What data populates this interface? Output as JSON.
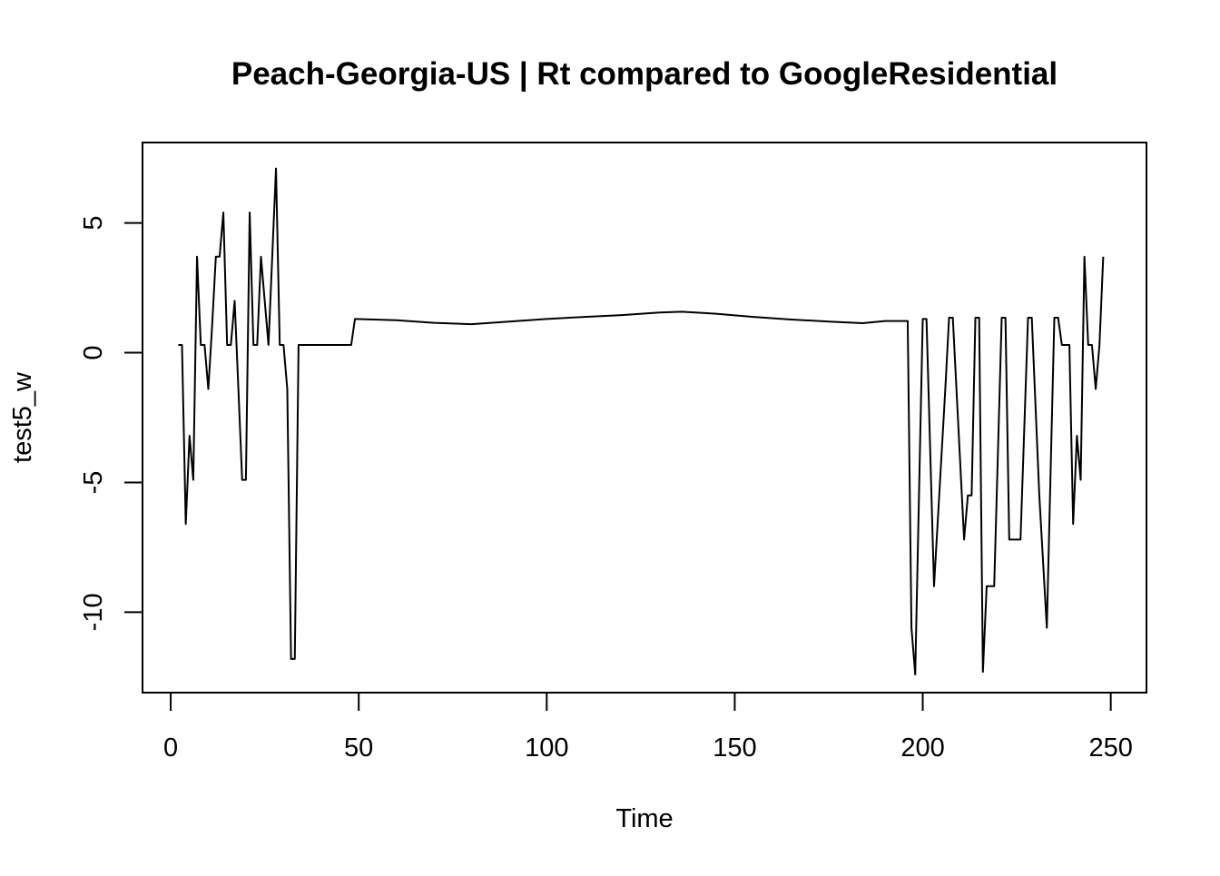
{
  "chart_data": {
    "type": "line",
    "title": "Peach-Georgia-US | Rt compared to GoogleResidential",
    "xlabel": "Time",
    "ylabel": "test5_w",
    "xlim": [
      -7.5,
      259.5
    ],
    "ylim": [
      -13.1,
      8.1
    ],
    "x_ticks": [
      0,
      50,
      100,
      150,
      200,
      250
    ],
    "y_ticks": [
      -10,
      -5,
      0,
      5
    ],
    "grid": false,
    "legend": "none",
    "line_color": "#000000",
    "series": [
      {
        "points": [
          [
            2,
            0.3
          ],
          [
            3,
            0.3
          ],
          [
            4,
            -6.6
          ],
          [
            5,
            -3.2
          ],
          [
            6,
            -4.9
          ],
          [
            7,
            3.7
          ],
          [
            8,
            0.3
          ],
          [
            9,
            0.3
          ],
          [
            10,
            -1.4
          ],
          [
            11,
            1.0
          ],
          [
            12,
            3.7
          ],
          [
            13,
            3.7
          ],
          [
            14,
            5.4
          ],
          [
            15,
            0.3
          ],
          [
            16,
            0.3
          ],
          [
            17,
            2.0
          ],
          [
            18,
            -1.4
          ],
          [
            19,
            -4.9
          ],
          [
            20,
            -4.9
          ],
          [
            21,
            5.4
          ],
          [
            22,
            0.3
          ],
          [
            23,
            0.3
          ],
          [
            24,
            3.7
          ],
          [
            25,
            2.0
          ],
          [
            26,
            0.3
          ],
          [
            27,
            3.7
          ],
          [
            28,
            7.1
          ],
          [
            29,
            0.3
          ],
          [
            30,
            0.3
          ],
          [
            31,
            -1.4
          ],
          [
            32,
            -11.8
          ],
          [
            33,
            -11.8
          ],
          [
            34,
            0.3
          ],
          [
            48,
            0.3
          ],
          [
            49,
            1.3
          ],
          [
            60,
            1.25
          ],
          [
            70,
            1.15
          ],
          [
            80,
            1.1
          ],
          [
            90,
            1.2
          ],
          [
            100,
            1.3
          ],
          [
            110,
            1.38
          ],
          [
            120,
            1.45
          ],
          [
            130,
            1.55
          ],
          [
            136,
            1.58
          ],
          [
            145,
            1.5
          ],
          [
            155,
            1.38
          ],
          [
            165,
            1.28
          ],
          [
            175,
            1.2
          ],
          [
            184,
            1.14
          ],
          [
            190,
            1.22
          ],
          [
            196,
            1.22
          ],
          [
            197,
            -10.6
          ],
          [
            198,
            -12.4
          ],
          [
            199,
            -5.5
          ],
          [
            200,
            1.3
          ],
          [
            201,
            1.3
          ],
          [
            203,
            -9.0
          ],
          [
            206,
            -1.4
          ],
          [
            207,
            1.35
          ],
          [
            208,
            1.35
          ],
          [
            211,
            -7.2
          ],
          [
            212,
            -5.5
          ],
          [
            213,
            -5.5
          ],
          [
            214,
            1.35
          ],
          [
            215,
            1.35
          ],
          [
            216,
            -12.3
          ],
          [
            217,
            -9.0
          ],
          [
            219,
            -9.0
          ],
          [
            221,
            1.35
          ],
          [
            222,
            1.35
          ],
          [
            223,
            -7.2
          ],
          [
            226,
            -7.2
          ],
          [
            228,
            1.35
          ],
          [
            229,
            1.35
          ],
          [
            231,
            -5.5
          ],
          [
            233,
            -10.6
          ],
          [
            235,
            1.35
          ],
          [
            236,
            1.35
          ],
          [
            237,
            0.3
          ],
          [
            239,
            0.3
          ],
          [
            240,
            -6.6
          ],
          [
            241,
            -3.2
          ],
          [
            242,
            -4.9
          ],
          [
            243,
            3.7
          ],
          [
            244,
            0.3
          ],
          [
            245,
            0.3
          ],
          [
            246,
            -1.4
          ],
          [
            247,
            0.3
          ],
          [
            248,
            3.7
          ]
        ]
      }
    ]
  }
}
